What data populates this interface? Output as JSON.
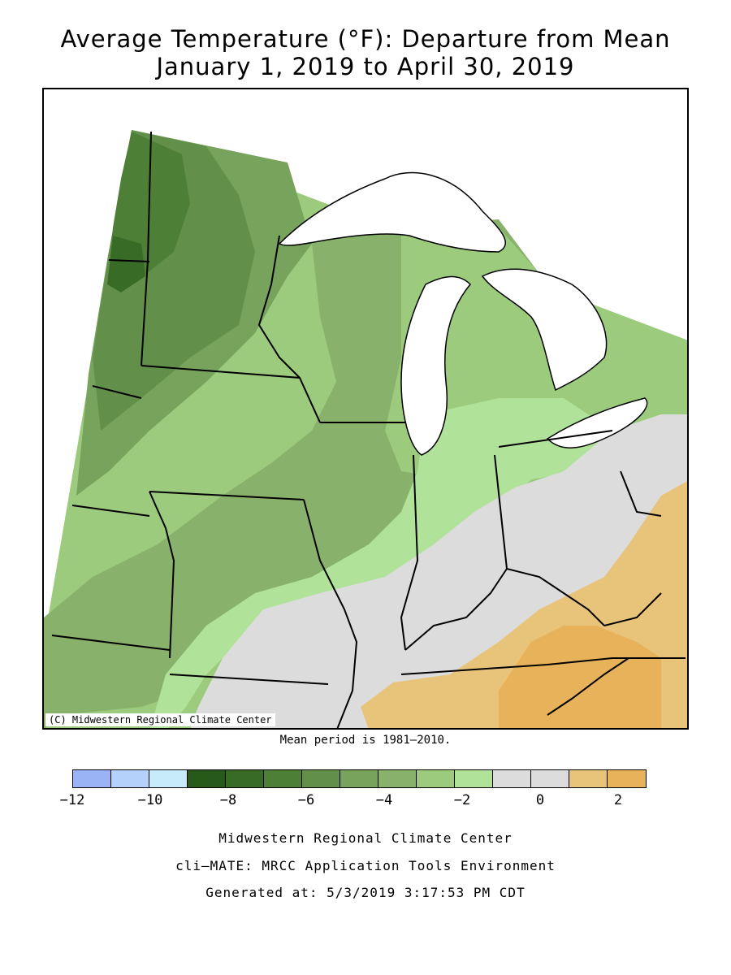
{
  "title_line1": "Average Temperature (°F): Departure from Mean",
  "title_line2": "January 1, 2019 to April 30, 2019",
  "map": {
    "credit": "(C) Midwestern Regional Climate Center",
    "regions": [
      "Minnesota",
      "Wisconsin",
      "Michigan",
      "Iowa",
      "Illinois",
      "Indiana",
      "Ohio",
      "Missouri",
      "Kentucky",
      "Lake Superior",
      "Lake Michigan",
      "Lake Huron",
      "Lake Erie"
    ]
  },
  "mean_period": "Mean period is 1981–2010.",
  "legend": {
    "colors": [
      "#99b3f5",
      "#b3d1fa",
      "#c8ebfa",
      "#27591a",
      "#386b26",
      "#4e7f37",
      "#62904a",
      "#77a35c",
      "#88b26b",
      "#9ccb7e",
      "#b1e29a",
      "#dcdcdc",
      "#dcdcdc",
      "#e8c47a",
      "#e8b25a"
    ],
    "tick_labels": [
      "−12",
      "−10",
      "−8",
      "−6",
      "−4",
      "−2",
      "0",
      "2"
    ],
    "tick_values": [
      -12,
      -10,
      -8,
      -6,
      -4,
      -2,
      0,
      2
    ]
  },
  "footer": {
    "line1": "Midwestern Regional Climate Center",
    "line2": "cli–MATE: MRCC Application Tools Environment",
    "line3": "Generated at: 5/3/2019 3:17:53 PM CDT"
  }
}
